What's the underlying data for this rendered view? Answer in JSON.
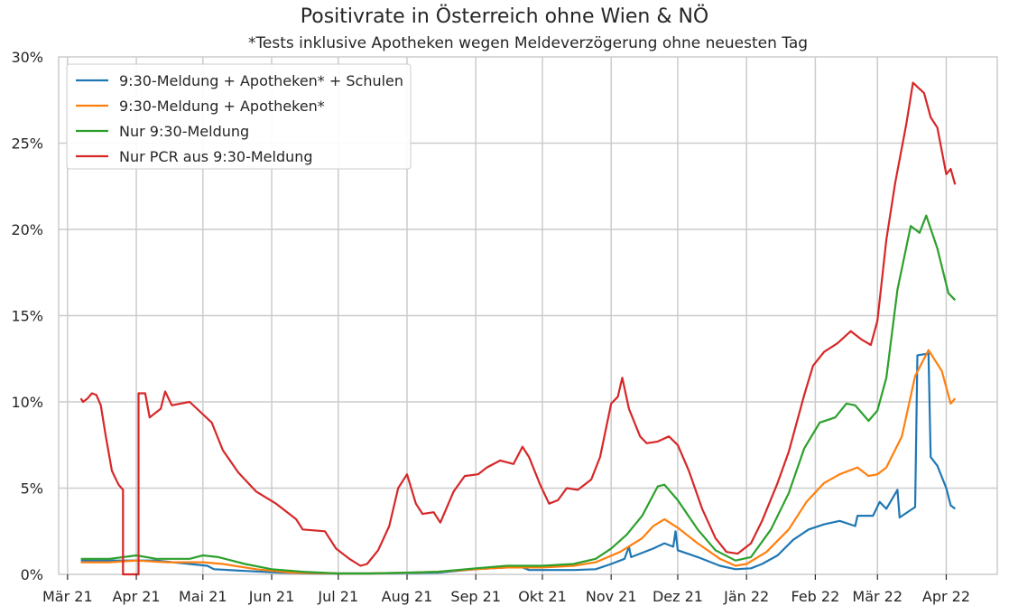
{
  "chart_data": {
    "type": "line",
    "title": "Positivrate in Österreich ohne Wien & NÖ",
    "subtitle": "*Tests inklusive Apotheken wegen Meldeverzögerung ohne neuesten Tag",
    "xlabel": "",
    "ylabel": "",
    "grid": true,
    "legend_position": "top-left",
    "ylim": [
      0,
      30
    ],
    "xlim": [
      "2021-02-25",
      "2022-04-24"
    ],
    "x_ticks": [
      {
        "date": "2021-03-01",
        "label": "Mär 21"
      },
      {
        "date": "2021-04-01",
        "label": "Apr 21"
      },
      {
        "date": "2021-05-01",
        "label": "Mai 21"
      },
      {
        "date": "2021-06-01",
        "label": "Jun 21"
      },
      {
        "date": "2021-07-01",
        "label": "Jul 21"
      },
      {
        "date": "2021-08-01",
        "label": "Aug 21"
      },
      {
        "date": "2021-09-01",
        "label": "Sep 21"
      },
      {
        "date": "2021-10-01",
        "label": "Okt 21"
      },
      {
        "date": "2021-11-01",
        "label": "Nov 21"
      },
      {
        "date": "2021-12-01",
        "label": "Dez 21"
      },
      {
        "date": "2022-01-01",
        "label": "Jän 22"
      },
      {
        "date": "2022-02-01",
        "label": "Feb 22"
      },
      {
        "date": "2022-03-01",
        "label": "Mär 22"
      },
      {
        "date": "2022-04-01",
        "label": "Apr 22"
      }
    ],
    "y_ticks": [
      {
        "value": 0,
        "label": "0%"
      },
      {
        "value": 5,
        "label": "5%"
      },
      {
        "value": 10,
        "label": "10%"
      },
      {
        "value": 15,
        "label": "15%"
      },
      {
        "value": 20,
        "label": "20%"
      },
      {
        "value": 25,
        "label": "25%"
      },
      {
        "value": 30,
        "label": "30%"
      }
    ],
    "series": [
      {
        "name": "9:30-Meldung + Apotheken* + Schulen",
        "color": "#1f77b4",
        "points": [
          [
            "2021-03-07",
            0.8
          ],
          [
            "2021-03-20",
            0.8
          ],
          [
            "2021-04-10",
            0.8
          ],
          [
            "2021-04-25",
            0.6
          ],
          [
            "2021-05-03",
            0.5
          ],
          [
            "2021-05-06",
            0.3
          ],
          [
            "2021-05-20",
            0.2
          ],
          [
            "2021-06-05",
            0.1
          ],
          [
            "2021-06-20",
            0.05
          ],
          [
            "2021-07-15",
            0.05
          ],
          [
            "2021-08-15",
            0.1
          ],
          [
            "2021-09-01",
            0.3
          ],
          [
            "2021-09-15",
            0.4
          ],
          [
            "2021-09-22",
            0.4
          ],
          [
            "2021-09-25",
            0.25
          ],
          [
            "2021-10-15",
            0.25
          ],
          [
            "2021-10-25",
            0.3
          ],
          [
            "2021-11-01",
            0.6
          ],
          [
            "2021-11-07",
            0.9
          ],
          [
            "2021-11-09",
            1.6
          ],
          [
            "2021-11-10",
            1.0
          ],
          [
            "2021-11-20",
            1.5
          ],
          [
            "2021-11-25",
            1.8
          ],
          [
            "2021-11-29",
            1.6
          ],
          [
            "2021-11-30",
            2.5
          ],
          [
            "2021-12-01",
            1.4
          ],
          [
            "2021-12-10",
            1.0
          ],
          [
            "2021-12-20",
            0.5
          ],
          [
            "2021-12-27",
            0.3
          ],
          [
            "2022-01-03",
            0.35
          ],
          [
            "2022-01-08",
            0.6
          ],
          [
            "2022-01-15",
            1.1
          ],
          [
            "2022-01-22",
            2.0
          ],
          [
            "2022-01-29",
            2.6
          ],
          [
            "2022-02-05",
            2.9
          ],
          [
            "2022-02-12",
            3.1
          ],
          [
            "2022-02-19",
            2.8
          ],
          [
            "2022-02-20",
            3.4
          ],
          [
            "2022-02-27",
            3.4
          ],
          [
            "2022-03-02",
            4.2
          ],
          [
            "2022-03-05",
            3.8
          ],
          [
            "2022-03-10",
            4.9
          ],
          [
            "2022-03-11",
            3.3
          ],
          [
            "2022-03-18",
            3.9
          ],
          [
            "2022-03-19",
            12.7
          ],
          [
            "2022-03-24",
            12.8
          ],
          [
            "2022-03-25",
            6.8
          ],
          [
            "2022-03-28",
            6.3
          ],
          [
            "2022-04-01",
            5.0
          ],
          [
            "2022-04-03",
            4.0
          ],
          [
            "2022-04-05",
            3.8
          ]
        ]
      },
      {
        "name": "9:30-Meldung + Apotheken*",
        "color": "#ff7f0e",
        "points": [
          [
            "2021-03-07",
            0.7
          ],
          [
            "2021-03-20",
            0.7
          ],
          [
            "2021-04-01",
            0.8
          ],
          [
            "2021-04-15",
            0.7
          ],
          [
            "2021-05-01",
            0.7
          ],
          [
            "2021-05-10",
            0.6
          ],
          [
            "2021-05-25",
            0.3
          ],
          [
            "2021-06-10",
            0.1
          ],
          [
            "2021-07-01",
            0.05
          ],
          [
            "2021-07-15",
            0.05
          ],
          [
            "2021-08-01",
            0.1
          ],
          [
            "2021-08-15",
            0.15
          ],
          [
            "2021-09-01",
            0.3
          ],
          [
            "2021-09-15",
            0.4
          ],
          [
            "2021-10-01",
            0.4
          ],
          [
            "2021-10-15",
            0.5
          ],
          [
            "2021-10-25",
            0.7
          ],
          [
            "2021-11-05",
            1.3
          ],
          [
            "2021-11-15",
            2.1
          ],
          [
            "2021-11-20",
            2.8
          ],
          [
            "2021-11-25",
            3.2
          ],
          [
            "2021-12-01",
            2.7
          ],
          [
            "2021-12-10",
            1.8
          ],
          [
            "2021-12-20",
            0.9
          ],
          [
            "2021-12-27",
            0.5
          ],
          [
            "2022-01-01",
            0.6
          ],
          [
            "2022-01-10",
            1.3
          ],
          [
            "2022-01-20",
            2.6
          ],
          [
            "2022-01-28",
            4.2
          ],
          [
            "2022-02-05",
            5.3
          ],
          [
            "2022-02-12",
            5.8
          ],
          [
            "2022-02-20",
            6.2
          ],
          [
            "2022-02-25",
            5.7
          ],
          [
            "2022-03-01",
            5.8
          ],
          [
            "2022-03-05",
            6.2
          ],
          [
            "2022-03-12",
            8.0
          ],
          [
            "2022-03-18",
            11.5
          ],
          [
            "2022-03-24",
            13.0
          ],
          [
            "2022-03-30",
            11.8
          ],
          [
            "2022-04-03",
            9.9
          ],
          [
            "2022-04-05",
            10.2
          ]
        ]
      },
      {
        "name": "Nur 9:30-Meldung",
        "color": "#2ca02c",
        "points": [
          [
            "2021-03-07",
            0.9
          ],
          [
            "2021-03-20",
            0.9
          ],
          [
            "2021-04-01",
            1.1
          ],
          [
            "2021-04-10",
            0.9
          ],
          [
            "2021-04-25",
            0.9
          ],
          [
            "2021-05-01",
            1.1
          ],
          [
            "2021-05-08",
            1.0
          ],
          [
            "2021-05-20",
            0.6
          ],
          [
            "2021-06-01",
            0.3
          ],
          [
            "2021-06-15",
            0.15
          ],
          [
            "2021-07-01",
            0.05
          ],
          [
            "2021-07-15",
            0.05
          ],
          [
            "2021-08-01",
            0.1
          ],
          [
            "2021-08-15",
            0.15
          ],
          [
            "2021-09-01",
            0.35
          ],
          [
            "2021-09-15",
            0.5
          ],
          [
            "2021-10-01",
            0.5
          ],
          [
            "2021-10-15",
            0.6
          ],
          [
            "2021-10-25",
            0.9
          ],
          [
            "2021-11-01",
            1.5
          ],
          [
            "2021-11-08",
            2.3
          ],
          [
            "2021-11-15",
            3.4
          ],
          [
            "2021-11-22",
            5.1
          ],
          [
            "2021-11-25",
            5.2
          ],
          [
            "2021-12-01",
            4.3
          ],
          [
            "2021-12-10",
            2.6
          ],
          [
            "2021-12-18",
            1.4
          ],
          [
            "2021-12-27",
            0.8
          ],
          [
            "2022-01-03",
            1.0
          ],
          [
            "2022-01-12",
            2.6
          ],
          [
            "2022-01-20",
            4.7
          ],
          [
            "2022-01-27",
            7.3
          ],
          [
            "2022-02-03",
            8.8
          ],
          [
            "2022-02-10",
            9.1
          ],
          [
            "2022-02-15",
            9.9
          ],
          [
            "2022-02-19",
            9.8
          ],
          [
            "2022-02-25",
            8.9
          ],
          [
            "2022-03-01",
            9.5
          ],
          [
            "2022-03-05",
            11.4
          ],
          [
            "2022-03-10",
            16.5
          ],
          [
            "2022-03-16",
            20.2
          ],
          [
            "2022-03-20",
            19.8
          ],
          [
            "2022-03-23",
            20.8
          ],
          [
            "2022-03-28",
            18.9
          ],
          [
            "2022-04-02",
            16.3
          ],
          [
            "2022-04-05",
            15.9
          ]
        ]
      },
      {
        "name": "Nur PCR aus 9:30-Meldung",
        "color": "#d62728",
        "points": [
          [
            "2021-03-07",
            10.2
          ],
          [
            "2021-03-08",
            10.0
          ],
          [
            "2021-03-10",
            10.2
          ],
          [
            "2021-03-12",
            10.5
          ],
          [
            "2021-03-14",
            10.4
          ],
          [
            "2021-03-16",
            9.8
          ],
          [
            "2021-03-18",
            8.2
          ],
          [
            "2021-03-21",
            6.0
          ],
          [
            "2021-03-24",
            5.2
          ],
          [
            "2021-03-26",
            4.9
          ],
          [
            "2021-03-26",
            0.0
          ],
          [
            "2021-04-02",
            0.0
          ],
          [
            "2021-04-02",
            10.5
          ],
          [
            "2021-04-05",
            10.5
          ],
          [
            "2021-04-07",
            9.1
          ],
          [
            "2021-04-12",
            9.6
          ],
          [
            "2021-04-14",
            10.6
          ],
          [
            "2021-04-17",
            9.8
          ],
          [
            "2021-04-25",
            10.0
          ],
          [
            "2021-04-30",
            9.4
          ],
          [
            "2021-05-05",
            8.8
          ],
          [
            "2021-05-10",
            7.2
          ],
          [
            "2021-05-17",
            5.9
          ],
          [
            "2021-05-25",
            4.8
          ],
          [
            "2021-06-03",
            4.1
          ],
          [
            "2021-06-12",
            3.2
          ],
          [
            "2021-06-15",
            2.6
          ],
          [
            "2021-06-25",
            2.5
          ],
          [
            "2021-06-30",
            1.5
          ],
          [
            "2021-07-06",
            0.9
          ],
          [
            "2021-07-11",
            0.5
          ],
          [
            "2021-07-14",
            0.6
          ],
          [
            "2021-07-19",
            1.4
          ],
          [
            "2021-07-24",
            2.8
          ],
          [
            "2021-07-28",
            5.0
          ],
          [
            "2021-08-01",
            5.8
          ],
          [
            "2021-08-05",
            4.1
          ],
          [
            "2021-08-08",
            3.5
          ],
          [
            "2021-08-13",
            3.6
          ],
          [
            "2021-08-16",
            3.0
          ],
          [
            "2021-08-22",
            4.8
          ],
          [
            "2021-08-27",
            5.7
          ],
          [
            "2021-09-02",
            5.8
          ],
          [
            "2021-09-06",
            6.2
          ],
          [
            "2021-09-12",
            6.6
          ],
          [
            "2021-09-18",
            6.4
          ],
          [
            "2021-09-22",
            7.4
          ],
          [
            "2021-09-25",
            6.8
          ],
          [
            "2021-09-30",
            5.2
          ],
          [
            "2021-10-04",
            4.1
          ],
          [
            "2021-10-08",
            4.3
          ],
          [
            "2021-10-12",
            5.0
          ],
          [
            "2021-10-17",
            4.9
          ],
          [
            "2021-10-23",
            5.5
          ],
          [
            "2021-10-27",
            6.8
          ],
          [
            "2021-11-01",
            9.9
          ],
          [
            "2021-11-04",
            10.3
          ],
          [
            "2021-11-06",
            11.4
          ],
          [
            "2021-11-09",
            9.6
          ],
          [
            "2021-11-14",
            8.0
          ],
          [
            "2021-11-17",
            7.6
          ],
          [
            "2021-11-22",
            7.7
          ],
          [
            "2021-11-27",
            8.0
          ],
          [
            "2021-12-01",
            7.5
          ],
          [
            "2021-12-06",
            6.0
          ],
          [
            "2021-12-12",
            3.8
          ],
          [
            "2021-12-18",
            2.1
          ],
          [
            "2021-12-23",
            1.3
          ],
          [
            "2021-12-28",
            1.2
          ],
          [
            "2022-01-03",
            1.8
          ],
          [
            "2022-01-08",
            3.1
          ],
          [
            "2022-01-15",
            5.3
          ],
          [
            "2022-01-20",
            7.1
          ],
          [
            "2022-01-27",
            10.4
          ],
          [
            "2022-01-31",
            12.1
          ],
          [
            "2022-02-05",
            12.9
          ],
          [
            "2022-02-11",
            13.4
          ],
          [
            "2022-02-17",
            14.1
          ],
          [
            "2022-02-22",
            13.6
          ],
          [
            "2022-02-26",
            13.3
          ],
          [
            "2022-03-01",
            14.7
          ],
          [
            "2022-03-05",
            19.4
          ],
          [
            "2022-03-09",
            22.7
          ],
          [
            "2022-03-14",
            26.1
          ],
          [
            "2022-03-17",
            28.5
          ],
          [
            "2022-03-22",
            27.9
          ],
          [
            "2022-03-25",
            26.5
          ],
          [
            "2022-03-28",
            25.9
          ],
          [
            "2022-04-01",
            23.2
          ],
          [
            "2022-04-03",
            23.5
          ],
          [
            "2022-04-05",
            22.6
          ]
        ]
      }
    ]
  }
}
